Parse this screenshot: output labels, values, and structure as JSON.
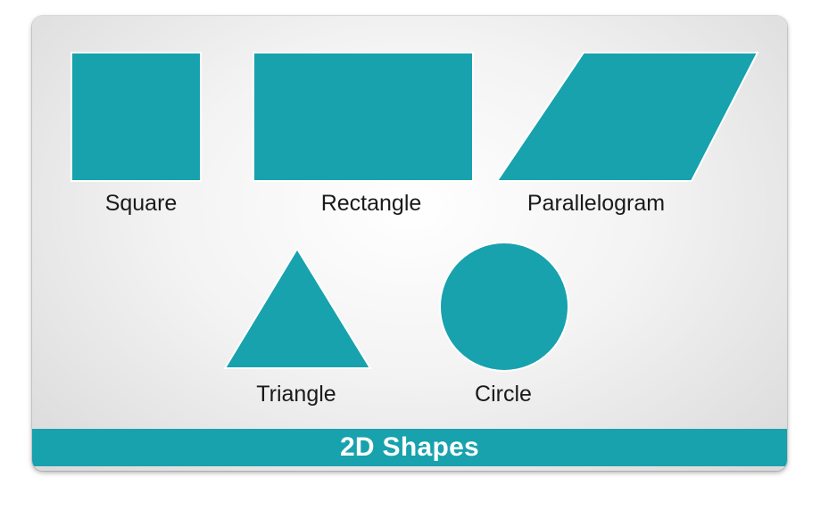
{
  "colors": {
    "shape_fill": "#17a2ad",
    "shape_outline": "#ffffff",
    "footer_background": "#17a2ad",
    "footer_text": "#ffffff",
    "label_text": "#1a1a1a"
  },
  "shapes": [
    {
      "id": "square",
      "label": "Square"
    },
    {
      "id": "rectangle",
      "label": "Rectangle"
    },
    {
      "id": "parallelogram",
      "label": "Parallelogram"
    },
    {
      "id": "triangle",
      "label": "Triangle"
    },
    {
      "id": "circle",
      "label": "Circle"
    }
  ],
  "footer": {
    "title": "2D Shapes"
  }
}
